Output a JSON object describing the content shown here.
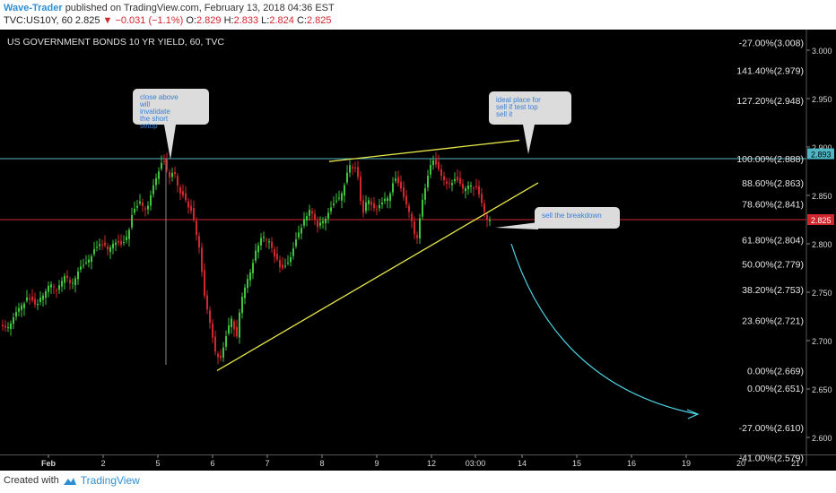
{
  "header": {
    "author": "Wave-Trader",
    "published": "published on TradingView.com, February 13, 2018 04:36 EST",
    "symbol": "TVC:US10Y, 60",
    "last": "2.825",
    "down_arrow": "▼",
    "change": "−0.031 (−1.1%)",
    "o_label": "O:",
    "o_val": "2.829",
    "h_label": "H:",
    "h_val": "2.833",
    "l_label": "L:",
    "l_val": "2.824",
    "c_label": "C:",
    "c_val": "2.825"
  },
  "footer": {
    "created_with": "Created with",
    "brand": "TradingView"
  },
  "chart_data": {
    "type": "candlestick",
    "title": "US GOVERNMENT BONDS 10 YR YIELD, 60, TVC",
    "ylim": [
      2.57,
      3.022
    ],
    "price_ticks": [
      "3.000",
      "2.950",
      "2.900",
      "2.850",
      "2.800",
      "2.750",
      "2.700",
      "2.650",
      "2.600"
    ],
    "date_ticks": [
      "Feb",
      "2",
      "5",
      "6",
      "7",
      "8",
      "9",
      "12",
      "03:00",
      "14",
      "15",
      "16",
      "19",
      "20",
      "21"
    ],
    "current_price": "2.825",
    "fib_tag_value": "2.893",
    "fib_levels": [
      {
        "label": "-27.00%(3.008)",
        "value": 3.008
      },
      {
        "label": "141.40%(2.979)",
        "value": 2.979
      },
      {
        "label": "127.20%(2.948)",
        "value": 2.948
      },
      {
        "label": "100.00%(2.888)",
        "value": 2.888
      },
      {
        "label": "88.60%(2.863)",
        "value": 2.863
      },
      {
        "label": "78.60%(2.841)",
        "value": 2.841
      },
      {
        "label": "61.80%(2.804)",
        "value": 2.804
      },
      {
        "label": "50.00%(2.779)",
        "value": 2.779
      },
      {
        "label": "38.20%(2.753)",
        "value": 2.753
      },
      {
        "label": "23.60%(2.721)",
        "value": 2.721
      },
      {
        "label": "0.00%(2.669)",
        "value": 2.669
      },
      {
        "label": "0.00%(2.651)",
        "value": 2.651
      },
      {
        "label": "-27.00%(2.610)",
        "value": 2.61
      },
      {
        "label": "-41.00%(2.579)",
        "value": 2.579
      }
    ],
    "annotations": [
      {
        "text": "close above will invalidate the short setup"
      },
      {
        "text": "ideal place for sell if test top sell it"
      },
      {
        "text": "sell the breakdown"
      }
    ],
    "close_path": [
      [
        0,
        2.716
      ],
      [
        8,
        2.712
      ],
      [
        16,
        2.726
      ],
      [
        24,
        2.738
      ],
      [
        32,
        2.744
      ],
      [
        40,
        2.735
      ],
      [
        48,
        2.748
      ],
      [
        56,
        2.76
      ],
      [
        64,
        2.753
      ],
      [
        72,
        2.768
      ],
      [
        80,
        2.758
      ],
      [
        88,
        2.774
      ],
      [
        96,
        2.779
      ],
      [
        104,
        2.792
      ],
      [
        112,
        2.8
      ],
      [
        120,
        2.795
      ],
      [
        128,
        2.803
      ],
      [
        136,
        2.797
      ],
      [
        142,
        2.808
      ],
      [
        148,
        2.832
      ],
      [
        156,
        2.842
      ],
      [
        164,
        2.836
      ],
      [
        170,
        2.857
      ],
      [
        176,
        2.873
      ],
      [
        182,
        2.886
      ],
      [
        188,
        2.869
      ],
      [
        194,
        2.875
      ],
      [
        200,
        2.855
      ],
      [
        208,
        2.842
      ],
      [
        214,
        2.831
      ],
      [
        222,
        2.797
      ],
      [
        228,
        2.745
      ],
      [
        234,
        2.719
      ],
      [
        240,
        2.688
      ],
      [
        246,
        2.681
      ],
      [
        252,
        2.704
      ],
      [
        258,
        2.724
      ],
      [
        264,
        2.703
      ],
      [
        268,
        2.739
      ],
      [
        274,
        2.759
      ],
      [
        280,
        2.774
      ],
      [
        286,
        2.795
      ],
      [
        292,
        2.808
      ],
      [
        300,
        2.804
      ],
      [
        306,
        2.788
      ],
      [
        314,
        2.772
      ],
      [
        322,
        2.78
      ],
      [
        330,
        2.803
      ],
      [
        338,
        2.822
      ],
      [
        346,
        2.837
      ],
      [
        354,
        2.818
      ],
      [
        362,
        2.826
      ],
      [
        370,
        2.838
      ],
      [
        378,
        2.846
      ],
      [
        384,
        2.862
      ],
      [
        390,
        2.881
      ],
      [
        398,
        2.876
      ],
      [
        404,
        2.828
      ],
      [
        410,
        2.848
      ],
      [
        418,
        2.834
      ],
      [
        426,
        2.842
      ],
      [
        434,
        2.851
      ],
      [
        440,
        2.867
      ],
      [
        446,
        2.859
      ],
      [
        452,
        2.842
      ],
      [
        458,
        2.83
      ],
      [
        464,
        2.8
      ],
      [
        470,
        2.84
      ],
      [
        476,
        2.866
      ],
      [
        482,
        2.888
      ],
      [
        488,
        2.877
      ],
      [
        494,
        2.867
      ],
      [
        500,
        2.861
      ],
      [
        508,
        2.866
      ],
      [
        516,
        2.857
      ],
      [
        524,
        2.862
      ],
      [
        532,
        2.856
      ],
      [
        538,
        2.839
      ],
      [
        542,
        2.828
      ],
      [
        546,
        2.825
      ]
    ],
    "trendlines": [
      {
        "from": [
          "6",
          2.669
        ],
        "to": [
          "14",
          2.863
        ]
      },
      {
        "from": [
          "8",
          2.885
        ],
        "to": [
          "14",
          2.907
        ]
      }
    ],
    "projection": {
      "from": [
        2.826
      ],
      "to": [
        "19",
        2.615
      ]
    }
  }
}
